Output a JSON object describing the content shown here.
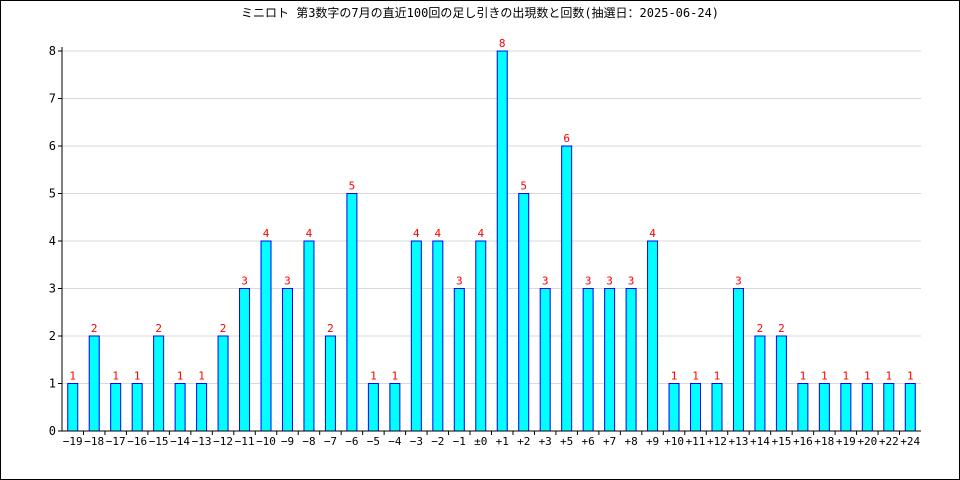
{
  "chart_data": {
    "type": "bar",
    "title": "ミニロト 第3数字の7月の直近100回の足し引きの出現数と回数(抽選日：2025-06-24)",
    "xlabel": "",
    "ylabel": "",
    "ylim": [
      0,
      8
    ],
    "yticks": [
      0,
      1,
      2,
      3,
      4,
      5,
      6,
      7,
      8
    ],
    "grid": true,
    "legend": "none",
    "categories": [
      "−19",
      "−18",
      "−17",
      "−16",
      "−15",
      "−14",
      "−13",
      "−12",
      "−11",
      "−10",
      "−9",
      "−8",
      "−7",
      "−6",
      "−5",
      "−4",
      "−3",
      "−2",
      "−1",
      "±0",
      "+1",
      "+2",
      "+3",
      "+5",
      "+6",
      "+7",
      "+8",
      "+9",
      "+10",
      "+11",
      "+12",
      "+13",
      "+14",
      "+15",
      "+16",
      "+18",
      "+19",
      "+20",
      "+22",
      "+24"
    ],
    "values": [
      1,
      2,
      1,
      1,
      2,
      1,
      1,
      2,
      3,
      4,
      3,
      4,
      2,
      5,
      1,
      1,
      4,
      4,
      3,
      4,
      8,
      5,
      3,
      6,
      3,
      3,
      3,
      4,
      1,
      1,
      1,
      3,
      2,
      2,
      1,
      1,
      1,
      1,
      1,
      1
    ],
    "colors": {
      "bar_fill": "#00ffff",
      "bar_stroke": "#0000ff",
      "data_label": "#ff0000",
      "grid": "#d9d9d9",
      "axis": "#000000"
    }
  }
}
